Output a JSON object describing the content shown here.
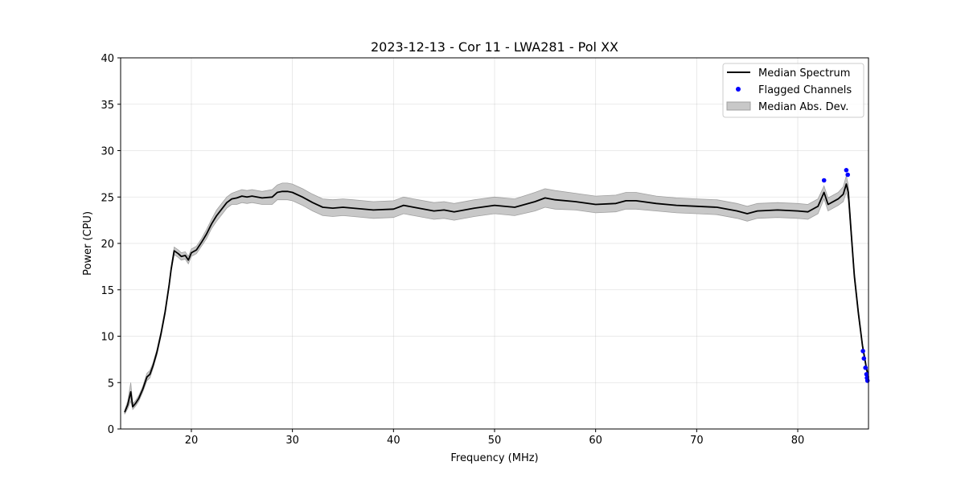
{
  "chart_data": {
    "type": "line",
    "title": "2023-12-13 - Cor 11 - LWA281 - Pol XX",
    "xlabel": "Frequency (MHz)",
    "ylabel": "Power (CPU)",
    "xlim": [
      13.0,
      87.0
    ],
    "ylim": [
      0,
      40
    ],
    "xticks": [
      20,
      30,
      40,
      50,
      60,
      70,
      80
    ],
    "yticks": [
      0,
      5,
      10,
      15,
      20,
      25,
      30,
      35,
      40
    ],
    "grid": true,
    "legend_position": "top-right",
    "legend": [
      "Median Spectrum",
      "Flagged Channels",
      "Median Abs. Dev."
    ],
    "colors": {
      "median_line": "#000000",
      "flagged_points": "#0000ff",
      "mad_band": "#c8c8c8",
      "mad_band_edge": "#a0a0a0"
    },
    "series": [
      {
        "name": "Median Spectrum",
        "kind": "line",
        "x": [
          13.4,
          13.7,
          14.0,
          14.2,
          14.5,
          14.8,
          15.2,
          15.6,
          15.9,
          16.2,
          16.6,
          17.0,
          17.4,
          17.8,
          18.0,
          18.3,
          18.7,
          19.0,
          19.4,
          19.7,
          20.0,
          20.5,
          21.0,
          21.5,
          22.0,
          22.5,
          23.0,
          23.5,
          24.0,
          24.5,
          25.0,
          25.5,
          26.0,
          27.0,
          28.0,
          28.5,
          29.0,
          29.5,
          30.0,
          31.0,
          32.0,
          33.0,
          34.0,
          35.0,
          36.0,
          38.0,
          40.0,
          41.0,
          42.0,
          44.0,
          45.0,
          46.0,
          48.0,
          50.0,
          52.0,
          54.0,
          55.0,
          56.0,
          58.0,
          60.0,
          62.0,
          63.0,
          64.0,
          66.0,
          68.0,
          70.0,
          72.0,
          74.0,
          75.0,
          76.0,
          78.0,
          80.0,
          81.0,
          82.0,
          82.6,
          83.0,
          84.0,
          84.5,
          84.8,
          85.0,
          85.3,
          85.6,
          86.0,
          86.4,
          86.8,
          87.0
        ],
        "y": [
          1.8,
          2.6,
          4.0,
          2.4,
          2.8,
          3.3,
          4.3,
          5.6,
          5.9,
          6.8,
          8.3,
          10.3,
          12.6,
          15.5,
          17.2,
          19.2,
          18.9,
          18.6,
          18.7,
          18.2,
          19.0,
          19.3,
          20.1,
          21.0,
          22.1,
          23.0,
          23.7,
          24.4,
          24.8,
          24.9,
          25.1,
          25.0,
          25.1,
          24.9,
          25.0,
          25.5,
          25.6,
          25.6,
          25.5,
          25.0,
          24.4,
          23.9,
          23.8,
          23.9,
          23.8,
          23.6,
          23.7,
          24.1,
          23.9,
          23.5,
          23.6,
          23.4,
          23.8,
          24.1,
          23.9,
          24.5,
          24.9,
          24.7,
          24.5,
          24.2,
          24.3,
          24.6,
          24.6,
          24.3,
          24.1,
          24.0,
          23.9,
          23.5,
          23.2,
          23.5,
          23.6,
          23.5,
          23.4,
          24.0,
          25.5,
          24.2,
          24.8,
          25.3,
          26.4,
          25.5,
          21.0,
          16.5,
          12.5,
          9.0,
          6.5,
          5.6
        ]
      },
      {
        "name": "Flagged Channels",
        "kind": "scatter",
        "x": [
          82.6,
          84.8,
          84.95,
          86.45,
          86.55,
          86.7,
          86.8,
          86.85,
          86.9
        ],
        "y": [
          26.8,
          27.9,
          27.4,
          8.4,
          7.6,
          6.6,
          5.9,
          5.5,
          5.2
        ]
      },
      {
        "name": "Median Abs. Dev.",
        "kind": "band",
        "half_width": [
          0.2,
          0.4,
          1.0,
          0.3,
          0.3,
          0.3,
          0.3,
          0.4,
          0.4,
          0.3,
          0.3,
          0.3,
          0.3,
          0.3,
          0.3,
          0.4,
          0.4,
          0.4,
          0.4,
          0.4,
          0.4,
          0.4,
          0.4,
          0.5,
          0.5,
          0.6,
          0.6,
          0.6,
          0.6,
          0.7,
          0.7,
          0.7,
          0.7,
          0.7,
          0.8,
          0.8,
          0.9,
          0.9,
          0.9,
          0.9,
          0.9,
          0.9,
          0.9,
          0.9,
          0.9,
          0.9,
          0.9,
          0.9,
          0.9,
          0.9,
          0.9,
          0.9,
          0.9,
          0.9,
          0.9,
          1.0,
          1.0,
          1.0,
          0.9,
          0.9,
          0.9,
          0.9,
          0.9,
          0.8,
          0.8,
          0.8,
          0.8,
          0.8,
          0.8,
          0.8,
          0.8,
          0.8,
          0.8,
          0.8,
          0.7,
          0.7,
          0.7,
          0.8,
          0.9,
          0.8,
          0.6,
          0.5,
          0.4,
          0.3,
          0.3,
          0.3
        ]
      }
    ]
  }
}
